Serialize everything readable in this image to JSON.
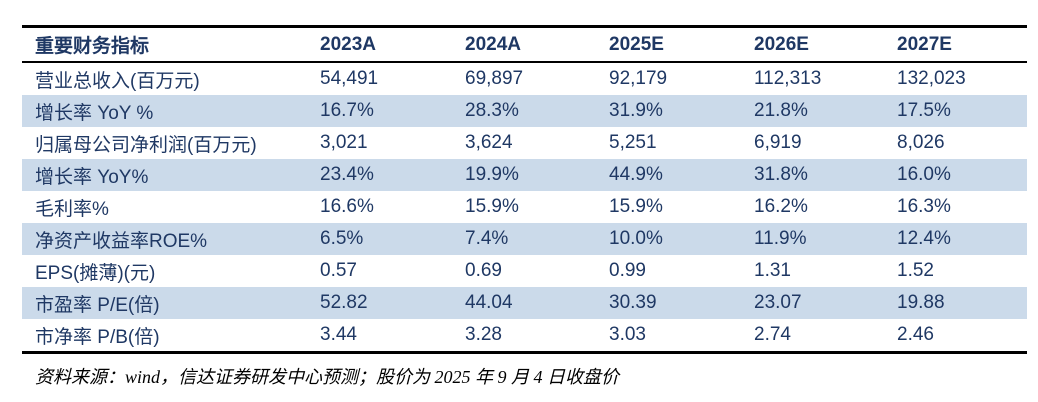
{
  "table": {
    "header": [
      "重要财务指标",
      "2023A",
      "2024A",
      "2025E",
      "2026E",
      "2027E"
    ],
    "rows": [
      {
        "label": "营业总收入(百万元)",
        "values": [
          "54,491",
          "69,897",
          "92,179",
          "112,313",
          "132,023"
        ],
        "shaded": false
      },
      {
        "label": "增长率 YoY %",
        "values": [
          "16.7%",
          "28.3%",
          "31.9%",
          "21.8%",
          "17.5%"
        ],
        "shaded": true
      },
      {
        "label": "归属母公司净利润(百万元)",
        "values": [
          "3,021",
          "3,624",
          "5,251",
          "6,919",
          "8,026"
        ],
        "shaded": false
      },
      {
        "label": "增长率 YoY%",
        "values": [
          "23.4%",
          "19.9%",
          "44.9%",
          "31.8%",
          "16.0%"
        ],
        "shaded": true
      },
      {
        "label": "毛利率%",
        "values": [
          "16.6%",
          "15.9%",
          "15.9%",
          "16.2%",
          "16.3%"
        ],
        "shaded": false
      },
      {
        "label": "净资产收益率ROE%",
        "values": [
          "6.5%",
          "7.4%",
          "10.0%",
          "11.9%",
          "12.4%"
        ],
        "shaded": true
      },
      {
        "label": "EPS(摊薄)(元)",
        "values": [
          "0.57",
          "0.69",
          "0.99",
          "1.31",
          "1.52"
        ],
        "shaded": false
      },
      {
        "label": "市盈率 P/E(倍)",
        "values": [
          "52.82",
          "44.04",
          "30.39",
          "23.07",
          "19.88"
        ],
        "shaded": true
      },
      {
        "label": "市净率 P/B(倍)",
        "values": [
          "3.44",
          "3.28",
          "3.03",
          "2.74",
          "2.46"
        ],
        "shaded": false
      }
    ]
  },
  "footer": {
    "source_note": "资料来源：wind，信达证券研发中心预测；股价为 2025 年 9 月 4 日收盘价"
  },
  "colors": {
    "text_navy": "#1F3864",
    "row_shade": "#CBDAEA",
    "border": "#000000",
    "background": "#FFFFFF"
  }
}
